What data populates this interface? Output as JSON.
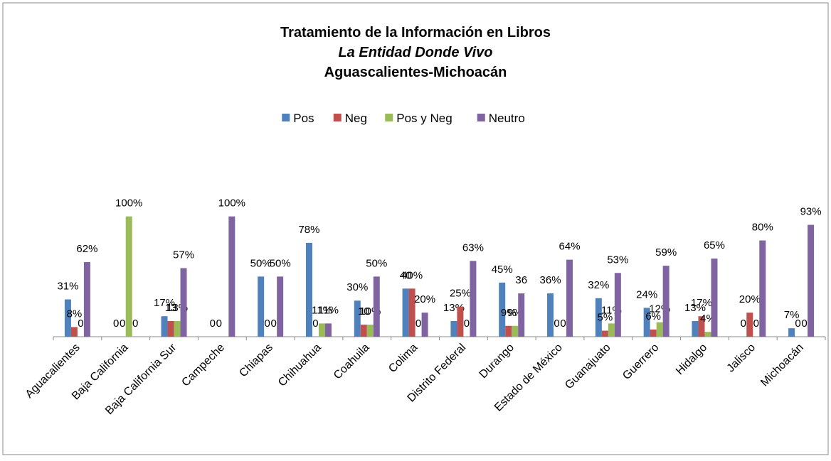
{
  "chart_data": {
    "type": "bar",
    "title": "Tratamiento de la Información en Libros",
    "subtitle": "La Entidad Donde Vivo",
    "title_line3": "Aguascalientes-Michoacán",
    "categories": [
      "Aguacalientes",
      "Baja California",
      "Baja California Sur",
      "Campeche",
      "Chiapas",
      "Chihuahua",
      "Coahuila",
      "Colima",
      "Distrito Federal",
      "Durango",
      "Estado de México",
      "Guanajuato",
      "Guerrero",
      "Hidalgo",
      "Jalisco",
      "Michoacán"
    ],
    "series": [
      {
        "name": "Pos",
        "color": "#4f81bd",
        "values": [
          31,
          0,
          17,
          0,
          50,
          78,
          30,
          40,
          13,
          45,
          36,
          32,
          24,
          13,
          0,
          7
        ],
        "value_labels": [
          "31%",
          "0",
          "17%",
          "0",
          "50%",
          "78%",
          "30%",
          "40",
          "13%",
          "45%",
          "36%",
          "32%",
          "24%",
          "13%",
          "0",
          "7%"
        ]
      },
      {
        "name": "Neg",
        "color": "#c0504d",
        "values": [
          8,
          0,
          13,
          0,
          0,
          0,
          10,
          40,
          25,
          9,
          0,
          5,
          6,
          17,
          20,
          0
        ],
        "value_labels": [
          "8%",
          "0",
          "13",
          "0",
          "0",
          "0",
          "10",
          "40%",
          "25%",
          "9%",
          "0",
          "5%",
          "6%",
          "17%",
          "20%",
          "0"
        ]
      },
      {
        "name": "Pos y Neg",
        "color": "#9bbb59",
        "values": [
          0,
          100,
          13,
          0,
          0,
          11,
          10,
          0,
          0,
          9,
          0,
          11,
          12,
          4,
          0,
          0
        ],
        "value_labels": [
          "0",
          "100%",
          "13%",
          null,
          "0",
          "11%",
          "10%",
          "0",
          "0",
          "9%",
          "0",
          "11%",
          "12%",
          "4%",
          "0",
          "0"
        ]
      },
      {
        "name": "Neutro",
        "color": "#8064a2",
        "values": [
          62,
          0,
          57,
          100,
          50,
          11,
          50,
          20,
          63,
          36,
          64,
          53,
          59,
          65,
          80,
          93
        ],
        "value_labels": [
          "62%",
          "0",
          "57%",
          "100%",
          "50%",
          "11%",
          "50%",
          "20%",
          "63%",
          "36",
          "64%",
          "53%",
          "59%",
          "65%",
          "80%",
          "93%"
        ]
      }
    ],
    "ylim": [
      0,
      150
    ],
    "legend": "top"
  }
}
